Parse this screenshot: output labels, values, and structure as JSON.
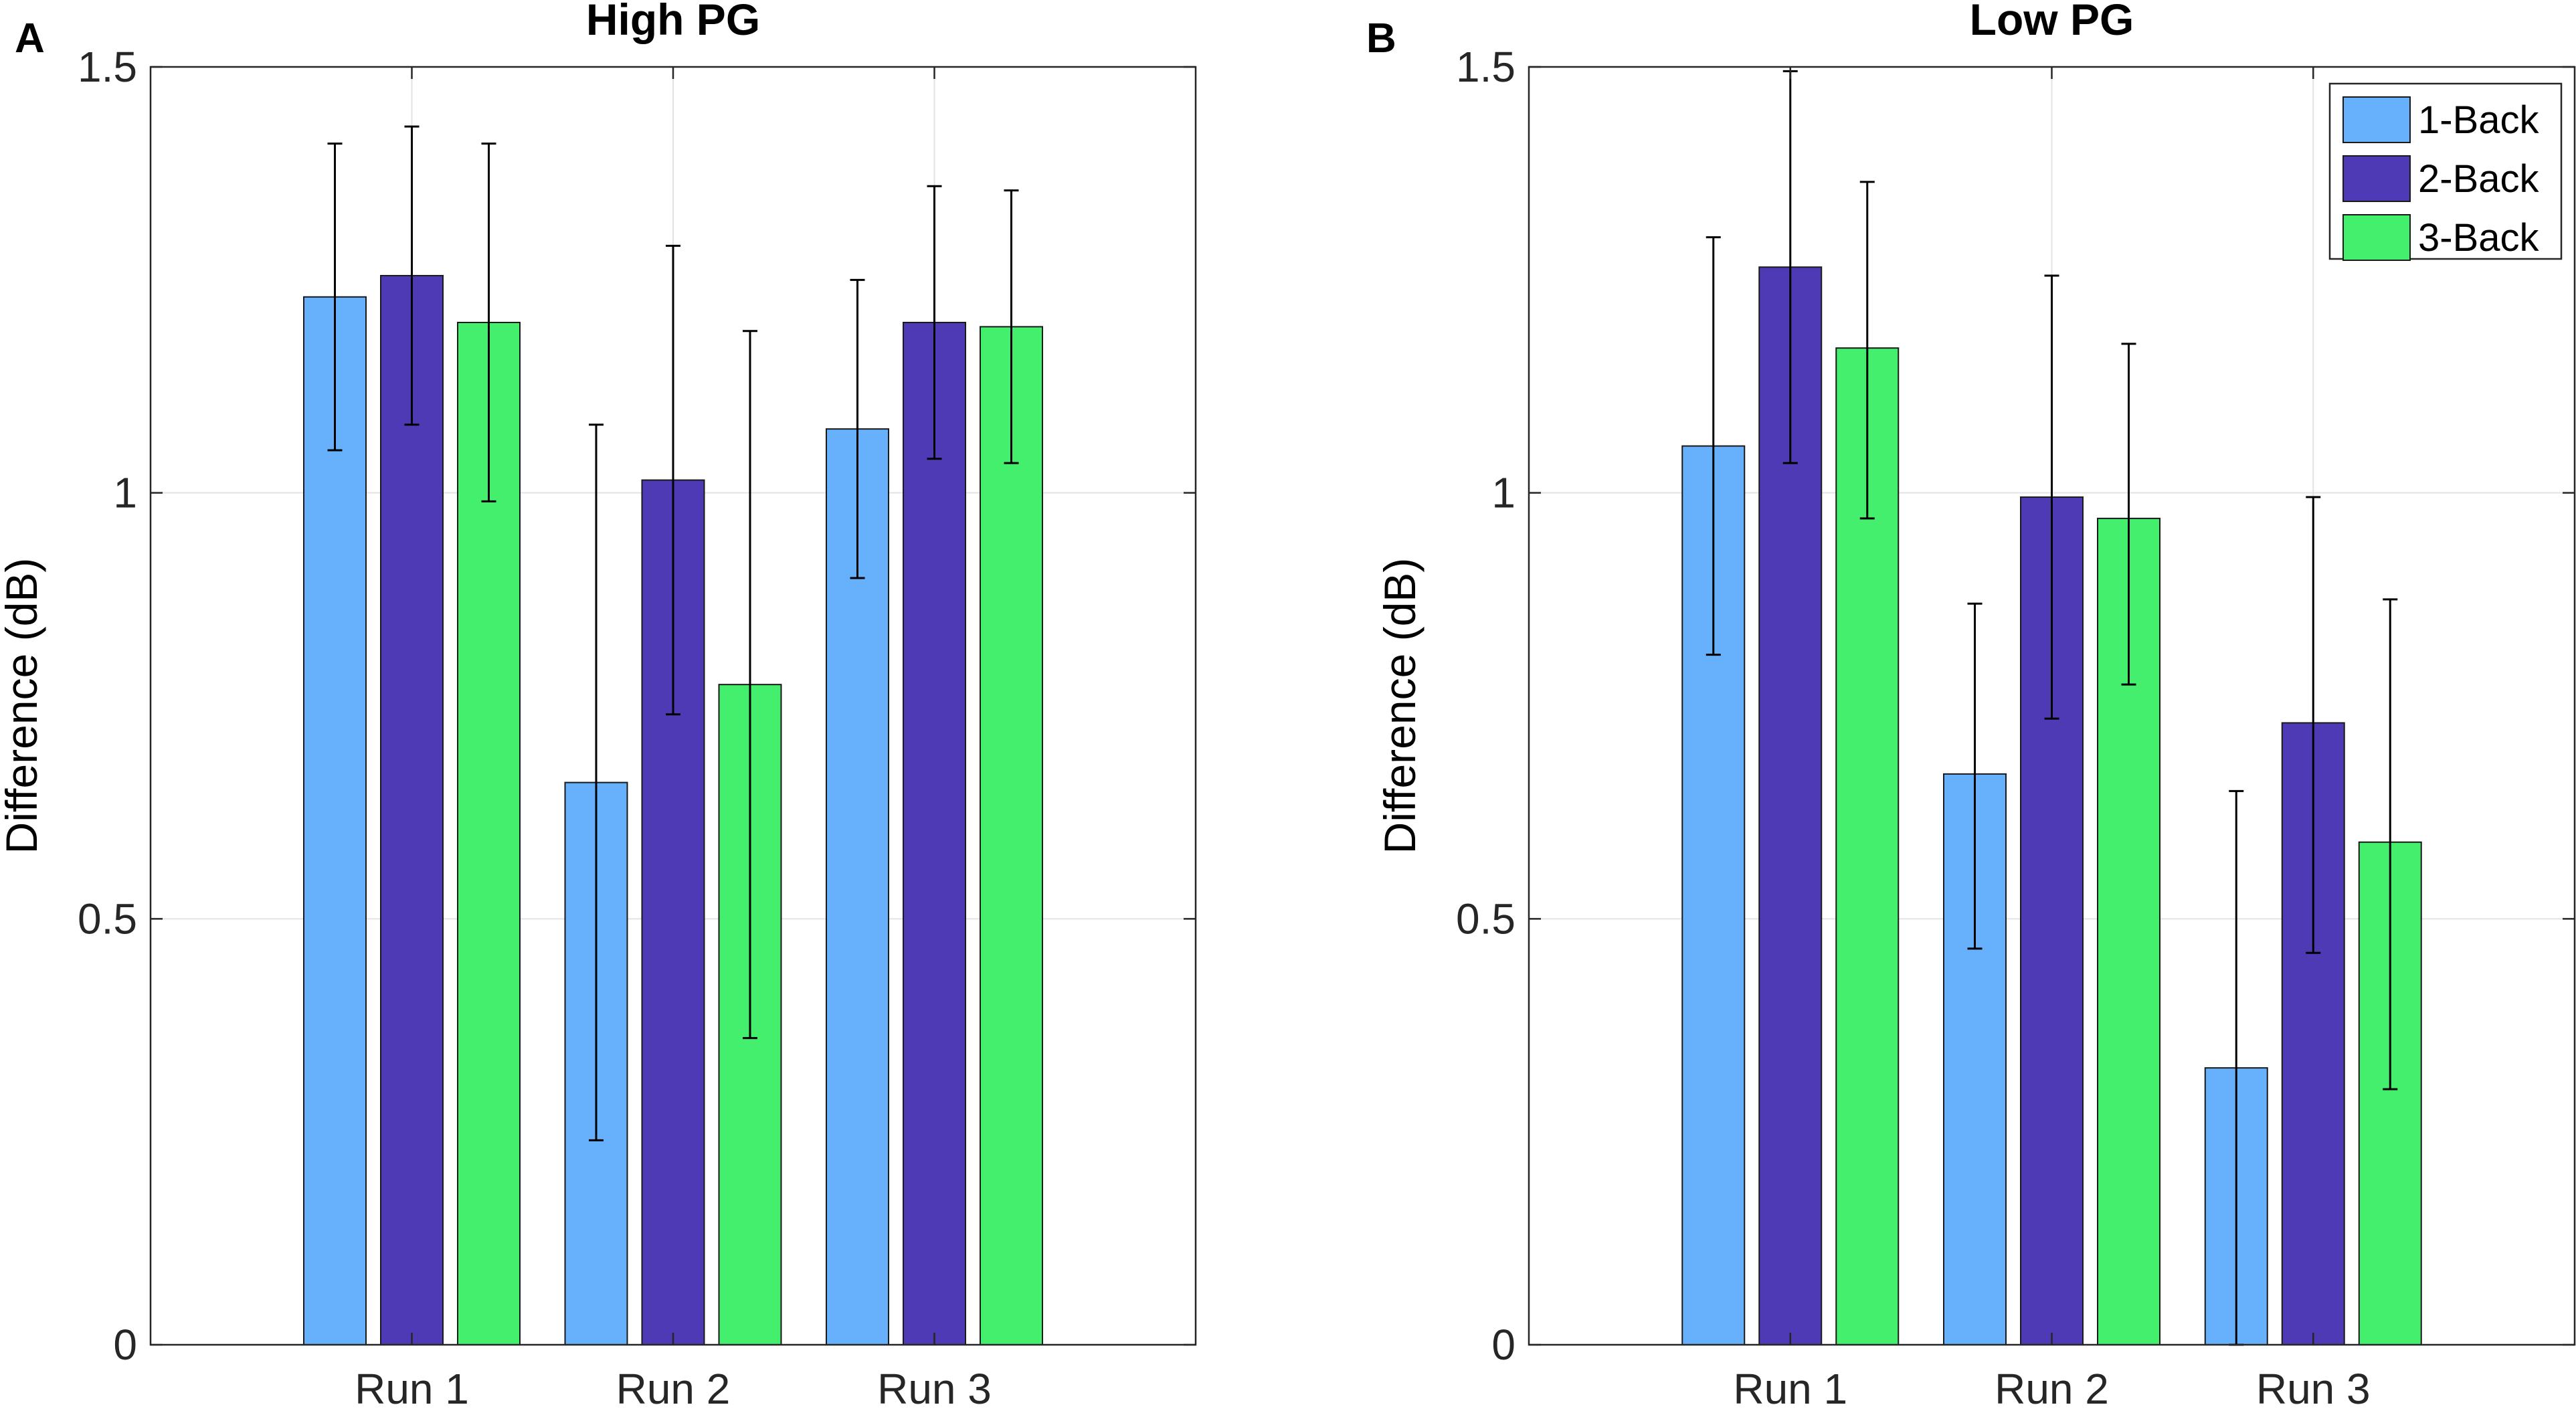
{
  "chart_data": [
    {
      "type": "bar",
      "panel_label": "A",
      "title": "High PG",
      "xlabel": "",
      "ylabel": "Difference (dB)",
      "ylim": [
        0,
        1.5
      ],
      "yticks": [
        "0",
        "0.5",
        "1",
        "1.5"
      ],
      "grid": true,
      "categories": [
        "Run 1",
        "Run 2",
        "Run 3"
      ],
      "series": [
        {
          "name": "1-Back",
          "color": "#66b0fc",
          "values": [
            1.23,
            0.66,
            1.075
          ],
          "err_low": [
            1.05,
            0.24,
            0.9
          ],
          "err_high": [
            1.41,
            1.08,
            1.25
          ]
        },
        {
          "name": "2-Back",
          "color": "#4f3ab5",
          "values": [
            1.255,
            1.015,
            1.2
          ],
          "err_low": [
            1.08,
            0.74,
            1.04
          ],
          "err_high": [
            1.43,
            1.29,
            1.36
          ]
        },
        {
          "name": "3-Back",
          "color": "#43ef6d",
          "values": [
            1.2,
            0.775,
            1.195
          ],
          "err_low": [
            0.99,
            0.36,
            1.035
          ],
          "err_high": [
            1.41,
            1.19,
            1.355
          ]
        }
      ]
    },
    {
      "type": "bar",
      "panel_label": "B",
      "title": "Low PG",
      "xlabel": "",
      "ylabel": "Difference (dB)",
      "ylim": [
        0,
        1.5
      ],
      "yticks": [
        "0",
        "0.5",
        "1",
        "1.5"
      ],
      "grid": true,
      "legend": "top-right",
      "categories": [
        "Run 1",
        "Run 2",
        "Run 3"
      ],
      "series": [
        {
          "name": "1-Back",
          "color": "#66b0fc",
          "values": [
            1.055,
            0.67,
            0.325
          ],
          "err_low": [
            0.81,
            0.465,
            0.0
          ],
          "err_high": [
            1.3,
            0.87,
            0.65
          ]
        },
        {
          "name": "2-Back",
          "color": "#4f3ab5",
          "values": [
            1.265,
            0.995,
            0.73
          ],
          "err_low": [
            1.035,
            0.735,
            0.46
          ],
          "err_high": [
            1.495,
            1.255,
            0.995
          ]
        },
        {
          "name": "3-Back",
          "color": "#43ef6d",
          "values": [
            1.17,
            0.97,
            0.59
          ],
          "err_low": [
            0.97,
            0.775,
            0.3
          ],
          "err_high": [
            1.365,
            1.175,
            0.875
          ]
        }
      ]
    }
  ]
}
